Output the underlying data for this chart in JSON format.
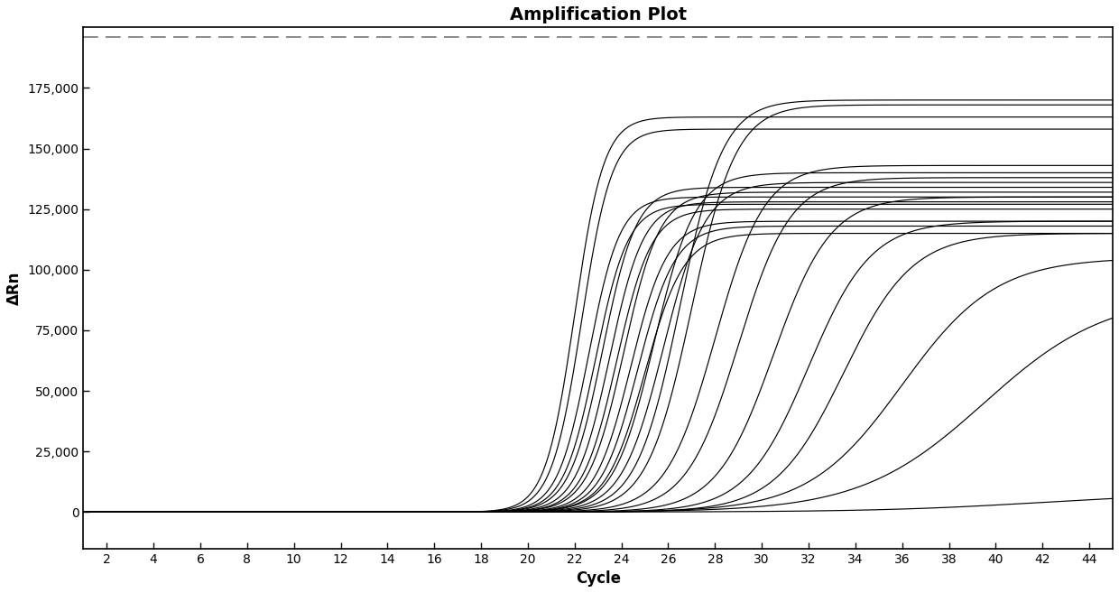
{
  "title": "Amplification Plot",
  "xlabel": "Cycle",
  "ylabel": "ΔRn",
  "xlim": [
    1,
    45
  ],
  "ylim": [
    -15000,
    200000
  ],
  "xticks": [
    2,
    4,
    6,
    8,
    10,
    12,
    14,
    16,
    18,
    20,
    22,
    24,
    26,
    28,
    30,
    32,
    34,
    36,
    38,
    40,
    42,
    44
  ],
  "yticks": [
    0,
    25000,
    50000,
    75000,
    100000,
    125000,
    150000,
    175000
  ],
  "dashed_line_y": 196000,
  "background_color": "#ffffff",
  "line_color": "#000000",
  "curves": [
    {
      "midpoint": 22.0,
      "plateau": 163000,
      "steepness": 1.6
    },
    {
      "midpoint": 22.3,
      "plateau": 158000,
      "steepness": 1.55
    },
    {
      "midpoint": 22.6,
      "plateau": 130000,
      "steepness": 1.5
    },
    {
      "midpoint": 22.9,
      "plateau": 127000,
      "steepness": 1.45
    },
    {
      "midpoint": 23.2,
      "plateau": 134000,
      "steepness": 1.4
    },
    {
      "midpoint": 23.5,
      "plateau": 128000,
      "steepness": 1.38
    },
    {
      "midpoint": 23.8,
      "plateau": 125000,
      "steepness": 1.35
    },
    {
      "midpoint": 24.1,
      "plateau": 132000,
      "steepness": 1.3
    },
    {
      "midpoint": 24.4,
      "plateau": 120000,
      "steepness": 1.28
    },
    {
      "midpoint": 24.7,
      "plateau": 118000,
      "steepness": 1.25
    },
    {
      "midpoint": 25.0,
      "plateau": 115000,
      "steepness": 1.2
    },
    {
      "midpoint": 25.4,
      "plateau": 140000,
      "steepness": 1.15
    },
    {
      "midpoint": 25.8,
      "plateau": 136000,
      "steepness": 1.12
    },
    {
      "midpoint": 26.5,
      "plateau": 170000,
      "steepness": 1.08
    },
    {
      "midpoint": 27.0,
      "plateau": 168000,
      "steepness": 1.05
    },
    {
      "midpoint": 28.0,
      "plateau": 143000,
      "steepness": 0.95
    },
    {
      "midpoint": 29.0,
      "plateau": 138000,
      "steepness": 0.9
    },
    {
      "midpoint": 30.5,
      "plateau": 130000,
      "steepness": 0.82
    },
    {
      "midpoint": 32.0,
      "plateau": 120000,
      "steepness": 0.75
    },
    {
      "midpoint": 33.5,
      "plateau": 115000,
      "steepness": 0.68
    },
    {
      "midpoint": 36.0,
      "plateau": 105000,
      "steepness": 0.5
    },
    {
      "midpoint": 39.5,
      "plateau": 90000,
      "steepness": 0.38
    },
    {
      "midpoint": 42.0,
      "plateau": 8000,
      "steepness": 0.28
    }
  ]
}
